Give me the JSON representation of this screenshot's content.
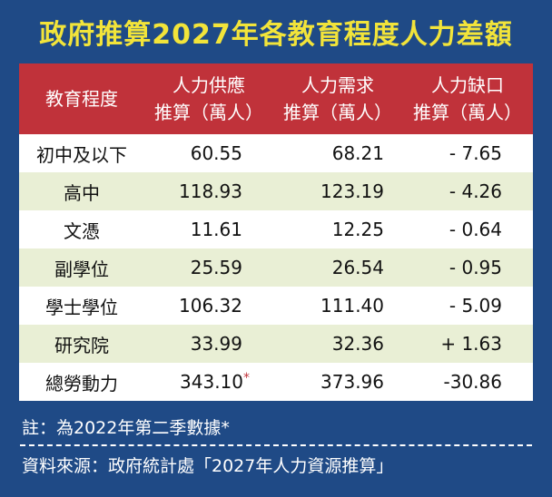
{
  "title": "政府推算2027年各教育程度人力差額",
  "table": {
    "headers": [
      {
        "line1": "教育程度",
        "line2": ""
      },
      {
        "line1": "人力供應",
        "line2": "推算（萬人）"
      },
      {
        "line1": "人力需求",
        "line2": "推算（萬人）"
      },
      {
        "line1": "人力缺口",
        "line2": "推算（萬人）"
      }
    ],
    "rows": [
      {
        "level": "初中及以下",
        "supply": "60.55",
        "demand": "68.21",
        "gap": "- 7.65"
      },
      {
        "level": "高中",
        "supply": "118.93",
        "demand": "123.19",
        "gap": "- 4.26"
      },
      {
        "level": "文憑",
        "supply": "11.61",
        "demand": "12.25",
        "gap": "- 0.64"
      },
      {
        "level": "副學位",
        "supply": "25.59",
        "demand": "26.54",
        "gap": "- 0.95"
      },
      {
        "level": "學士學位",
        "supply": "106.32",
        "demand": "111.40",
        "gap": "- 5.09"
      },
      {
        "level": "研究院",
        "supply": "33.99",
        "demand": "32.36",
        "gap": "+ 1.63"
      },
      {
        "level": "總勞動力",
        "supply": "343.10",
        "supply_mark": "*",
        "demand": "373.96",
        "gap": "-30.86"
      }
    ]
  },
  "chart_data": {
    "type": "table",
    "title": "政府推算2027年各教育程度人力差額",
    "columns": [
      "教育程度",
      "人力供應推算（萬人）",
      "人力需求推算（萬人）",
      "人力缺口推算（萬人）"
    ],
    "rows": [
      [
        "初中及以下",
        60.55,
        68.21,
        -7.65
      ],
      [
        "高中",
        118.93,
        123.19,
        -4.26
      ],
      [
        "文憑",
        11.61,
        12.25,
        -0.64
      ],
      [
        "副學位",
        25.59,
        26.54,
        -0.95
      ],
      [
        "學士學位",
        106.32,
        111.4,
        -5.09
      ],
      [
        "研究院",
        33.99,
        32.36,
        1.63
      ],
      [
        "總勞動力",
        343.1,
        373.96,
        -30.86
      ]
    ]
  },
  "note": "註：為2022年第二季數據*",
  "source": "資料來源：政府統計處「2027年人力資源推算」",
  "colors": {
    "background": "#1f4a86",
    "title": "#f2e43a",
    "header": "#c0323a",
    "row_alt": "#e9efd5"
  }
}
